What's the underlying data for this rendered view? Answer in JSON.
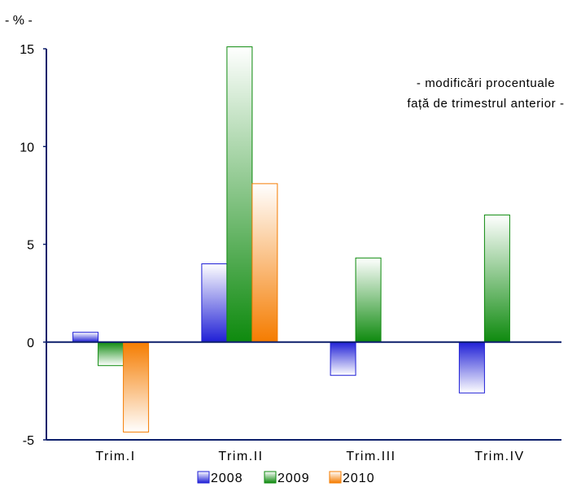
{
  "chart_data": {
    "type": "bar",
    "unit_label": "- % -",
    "annotation": [
      "- modificări procentuale",
      "față de trimestrul anterior -"
    ],
    "categories": [
      "Trim.I",
      "Trim.II",
      "Trim.III",
      "Trim.IV"
    ],
    "series": [
      {
        "name": "2008",
        "values": [
          0.5,
          4.0,
          -1.7,
          -2.6
        ]
      },
      {
        "name": "2009",
        "values": [
          -1.2,
          15.1,
          4.3,
          6.5
        ]
      },
      {
        "name": "2010",
        "values": [
          -4.6,
          8.1,
          null,
          null
        ]
      }
    ],
    "ylim": [
      -5,
      15
    ],
    "yticks": [
      -5,
      0,
      5,
      10,
      15
    ],
    "legend_position": "bottom",
    "grid": false
  },
  "colors": {
    "axis": "#0d1f6b",
    "2008": "#1f1fd6",
    "2009": "#0e8a0e",
    "2010": "#f57c00",
    "2008_light": "#ffffff",
    "2009_light": "#ffffff",
    "2010_light": "#ffffff"
  }
}
